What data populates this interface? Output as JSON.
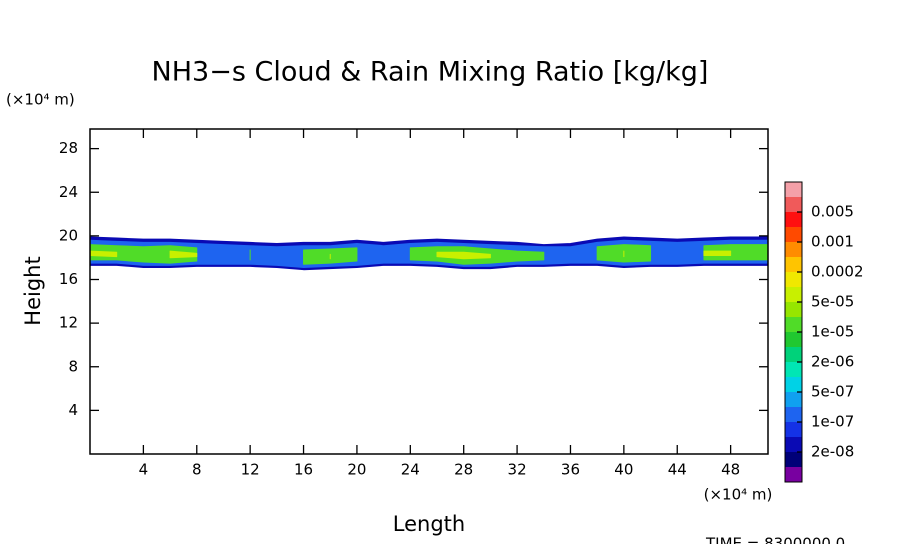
{
  "chart_data": {
    "type": "contour",
    "title": "NH3−s Cloud & Rain Mixing Ratio [kg/kg]",
    "x_label": "Length",
    "y_label": "Height",
    "x_unit": "(×10⁴ m)",
    "y_unit": "(×10⁴ m)",
    "footer": "TIME =  8300000.0",
    "xlim": [
      0,
      50.8
    ],
    "ylim": [
      0,
      29.8
    ],
    "xticks": [
      4,
      8,
      12,
      16,
      20,
      24,
      28,
      32,
      36,
      40,
      44,
      48
    ],
    "yticks": [
      4,
      8,
      12,
      16,
      20,
      24,
      28
    ],
    "colorbar": {
      "colors": [
        "#f4a0a8",
        "#f05a5a",
        "#ff1010",
        "#ff4a00",
        "#ff8c00",
        "#ffc400",
        "#f0e800",
        "#c8f000",
        "#96e600",
        "#50dc28",
        "#20c830",
        "#00d27a",
        "#00e6b4",
        "#00d2e6",
        "#10a0f0",
        "#1e64f0",
        "#1432e6",
        "#0a0ab4",
        "#000078",
        "#7800a0"
      ],
      "levels": [
        0.005,
        0.001,
        0.0002,
        {
          "value": 5e-05,
          "label": "5e-05"
        },
        {
          "value": 1e-05,
          "label": "1e-05"
        },
        {
          "value": 2e-06,
          "label": "2e-06"
        },
        {
          "value": 5e-07,
          "label": "5e-07"
        },
        {
          "value": 1e-07,
          "label": "1e-07"
        },
        {
          "value": 2e-08,
          "label": "2e-08"
        }
      ]
    },
    "regions": [
      {
        "level": 2e-08,
        "color": "#0a0ab4",
        "x": [
          0,
          2,
          4,
          6,
          8,
          10,
          12,
          14,
          16,
          18,
          20,
          22,
          24,
          26,
          28,
          30,
          32,
          34,
          36,
          38,
          40,
          42,
          44,
          46,
          48,
          50,
          50.8
        ],
        "top": [
          19.9,
          19.8,
          19.7,
          19.7,
          19.6,
          19.5,
          19.4,
          19.3,
          19.4,
          19.4,
          19.6,
          19.4,
          19.6,
          19.7,
          19.6,
          19.5,
          19.4,
          19.2,
          19.3,
          19.7,
          19.9,
          19.8,
          19.7,
          19.8,
          19.9,
          19.9,
          19.9
        ],
        "bottom": [
          17.3,
          17.3,
          17.1,
          17.1,
          17.2,
          17.2,
          17.2,
          17.1,
          16.9,
          17.0,
          17.1,
          17.3,
          17.3,
          17.2,
          17.0,
          17.0,
          17.2,
          17.2,
          17.3,
          17.3,
          17.1,
          17.2,
          17.2,
          17.3,
          17.3,
          17.3,
          17.3
        ]
      },
      {
        "level": 1e-07,
        "color": "#1e64f0",
        "x": [
          0,
          2,
          4,
          6,
          8,
          10,
          12,
          14,
          16,
          18,
          20,
          22,
          24,
          26,
          28,
          30,
          32,
          34,
          36,
          38,
          40,
          42,
          44,
          46,
          48,
          50,
          50.8
        ],
        "top": [
          19.6,
          19.5,
          19.4,
          19.4,
          19.3,
          19.2,
          19.1,
          19.0,
          19.1,
          19.1,
          19.3,
          19.1,
          19.3,
          19.4,
          19.3,
          19.2,
          19.1,
          19.0,
          19.0,
          19.4,
          19.6,
          19.5,
          19.4,
          19.5,
          19.6,
          19.6,
          19.6
        ],
        "bottom": [
          17.5,
          17.5,
          17.3,
          17.3,
          17.4,
          17.4,
          17.4,
          17.3,
          17.1,
          17.2,
          17.3,
          17.5,
          17.5,
          17.4,
          17.2,
          17.2,
          17.4,
          17.4,
          17.5,
          17.5,
          17.3,
          17.4,
          17.4,
          17.5,
          17.5,
          17.5,
          17.5
        ]
      },
      {
        "level": 1e-05,
        "color": "#50dc28",
        "x": [
          0,
          2,
          4,
          6,
          8,
          10,
          12,
          14,
          16,
          18,
          20,
          22,
          24,
          26,
          28,
          30,
          32,
          34,
          36,
          38,
          40,
          42,
          44,
          46,
          48,
          50,
          50.8
        ],
        "top": [
          19.2,
          19.1,
          19.0,
          19.1,
          18.9,
          null,
          18.7,
          null,
          18.7,
          18.8,
          18.9,
          null,
          18.9,
          19.0,
          19.0,
          18.8,
          18.6,
          18.5,
          null,
          19.0,
          19.2,
          19.1,
          null,
          19.1,
          19.2,
          19.2,
          19.2
        ],
        "bottom": [
          17.8,
          17.8,
          17.6,
          17.5,
          17.7,
          null,
          17.8,
          null,
          17.4,
          17.5,
          17.7,
          null,
          17.8,
          17.7,
          17.4,
          17.5,
          17.7,
          17.8,
          null,
          17.8,
          17.6,
          17.7,
          null,
          17.8,
          17.8,
          17.8,
          17.8
        ]
      },
      {
        "level": 5e-05,
        "color": "#c8f000",
        "x": [
          0,
          2,
          4,
          6,
          8,
          10,
          12,
          14,
          16,
          18,
          20,
          22,
          24,
          26,
          28,
          30,
          32,
          34,
          36,
          38,
          40,
          42,
          44,
          46,
          48,
          50,
          50.8
        ],
        "top": [
          18.6,
          18.5,
          null,
          18.6,
          18.4,
          null,
          null,
          null,
          null,
          18.3,
          null,
          null,
          null,
          18.5,
          18.5,
          18.3,
          null,
          null,
          null,
          null,
          18.6,
          null,
          null,
          18.6,
          18.6,
          null,
          null
        ],
        "bottom": [
          18.2,
          18.1,
          null,
          18.0,
          18.1,
          null,
          null,
          null,
          null,
          17.9,
          null,
          null,
          null,
          18.1,
          17.9,
          18.0,
          null,
          null,
          null,
          null,
          18.1,
          null,
          null,
          18.2,
          18.2,
          null,
          null
        ]
      }
    ]
  }
}
